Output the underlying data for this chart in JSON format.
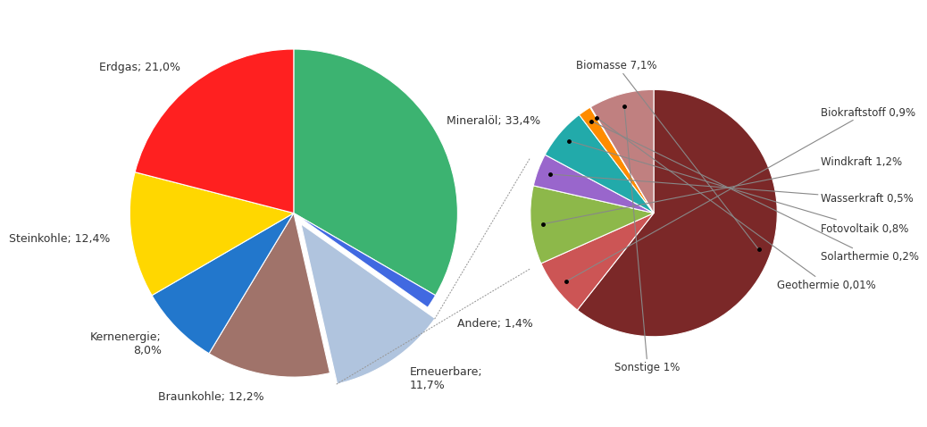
{
  "main_values_ordered": [
    33.4,
    1.4,
    11.7,
    12.2,
    8.0,
    12.4,
    21.0
  ],
  "main_colors_ordered": [
    "#3CB371",
    "#4169E1",
    "#B0C4DE",
    "#A0736A",
    "#2277CC",
    "#FFD700",
    "#FF2020"
  ],
  "main_labels_ordered": [
    "Mineralöl; 33,4%",
    "Andere; 1,4%",
    "Erneuerbare;\n11,7%",
    "Braunkohle; 12,2%",
    "Kernenergie;\n8,0%",
    "Steinkohle; 12,4%",
    "Erdgas; 21,0%"
  ],
  "main_explode": [
    0,
    0,
    0.08,
    0,
    0,
    0,
    0
  ],
  "sub_values": [
    7.1,
    0.9,
    1.2,
    0.5,
    0.8,
    0.2,
    0.01,
    1.0
  ],
  "sub_colors": [
    "#7B2828",
    "#CC5555",
    "#8DB84A",
    "#9966CC",
    "#22AAAA",
    "#FF8C00",
    "#FFB6C1",
    "#C08080"
  ],
  "sub_labels_display": [
    "Biomasse 7,1%",
    "Biokraftstoff 0,9%",
    "Windkraft 1,2%",
    "Wasserkraft 0,5%",
    "Fotovoltaik 0,8%",
    "Solarthermie 0,2%",
    "Geothermie 0,01%",
    "Sonstige 1%"
  ],
  "background_color": "#FFFFFF",
  "font_size": 9
}
